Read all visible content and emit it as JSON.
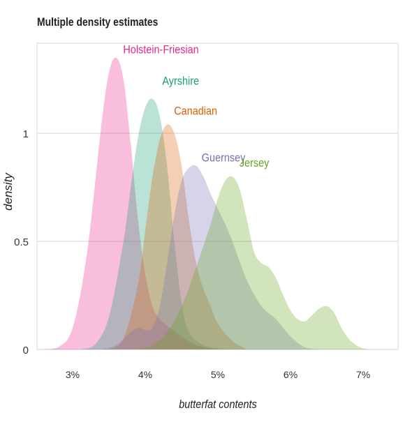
{
  "chart_data": {
    "type": "area",
    "title": "Multiple density estimates",
    "xlabel": "butterfat contents",
    "ylabel": "density",
    "xlim": [
      2.51,
      7.48
    ],
    "ylim": [
      0,
      1.42
    ],
    "x_ticks": [
      3,
      4,
      5,
      6,
      7
    ],
    "x_tick_labels": [
      "3%",
      "4%",
      "5%",
      "6%",
      "7%"
    ],
    "y_ticks": [
      0,
      0.5,
      1
    ],
    "y_tick_labels": [
      "0",
      "0.5",
      "1"
    ],
    "grid": "horizontal",
    "legend": "direct labels",
    "series": [
      {
        "name": "Holstein-Friesian",
        "color": "#E7298A",
        "x": [
          2.6,
          2.8,
          3.0,
          3.2,
          3.4,
          3.5,
          3.6,
          3.7,
          3.8,
          3.9,
          4.0,
          4.1,
          4.2,
          4.3,
          4.5,
          4.7,
          4.9,
          5.1
        ],
        "y": [
          0,
          0.01,
          0.1,
          0.45,
          1.05,
          1.28,
          1.35,
          1.25,
          0.95,
          0.6,
          0.35,
          0.2,
          0.14,
          0.11,
          0.06,
          0.02,
          0.005,
          0
        ]
      },
      {
        "name": "Ayrshire",
        "color": "#1B9E77",
        "x": [
          3.1,
          3.3,
          3.5,
          3.7,
          3.8,
          3.9,
          4.0,
          4.1,
          4.2,
          4.3,
          4.4,
          4.5,
          4.6,
          4.8,
          5.0,
          5.2
        ],
        "y": [
          0,
          0.02,
          0.15,
          0.5,
          0.75,
          0.98,
          1.12,
          1.16,
          1.08,
          0.85,
          0.5,
          0.22,
          0.08,
          0.02,
          0.005,
          0
        ]
      },
      {
        "name": "Canadian",
        "color": "#D95F02",
        "x": [
          3.5,
          3.7,
          3.9,
          4.0,
          4.1,
          4.2,
          4.3,
          4.4,
          4.5,
          4.6,
          4.7,
          4.8,
          4.9,
          5.0,
          5.2,
          5.4
        ],
        "y": [
          0,
          0.05,
          0.3,
          0.55,
          0.8,
          0.97,
          1.04,
          1.0,
          0.85,
          0.6,
          0.4,
          0.28,
          0.2,
          0.12,
          0.04,
          0
        ]
      },
      {
        "name": "Guernsey",
        "color": "#7570B3",
        "x": [
          3.4,
          3.6,
          3.8,
          3.9,
          4.0,
          4.1,
          4.2,
          4.3,
          4.4,
          4.5,
          4.6,
          4.7,
          4.8,
          4.9,
          5.0,
          5.1,
          5.2,
          5.4,
          5.6,
          5.8,
          6.0,
          6.2,
          6.4
        ],
        "y": [
          0,
          0.02,
          0.08,
          0.1,
          0.09,
          0.1,
          0.2,
          0.4,
          0.62,
          0.78,
          0.84,
          0.85,
          0.8,
          0.72,
          0.65,
          0.58,
          0.5,
          0.32,
          0.2,
          0.14,
          0.06,
          0.01,
          0
        ]
      },
      {
        "name": "Jersey",
        "color": "#66A61E",
        "x": [
          3.9,
          4.1,
          4.3,
          4.5,
          4.7,
          4.9,
          5.0,
          5.1,
          5.2,
          5.3,
          5.4,
          5.5,
          5.6,
          5.7,
          5.8,
          5.9,
          6.0,
          6.1,
          6.2,
          6.3,
          6.4,
          6.5,
          6.6,
          6.7,
          6.8,
          6.9,
          7.0,
          7.1
        ],
        "y": [
          0,
          0.02,
          0.08,
          0.2,
          0.38,
          0.58,
          0.7,
          0.78,
          0.8,
          0.74,
          0.6,
          0.45,
          0.4,
          0.38,
          0.33,
          0.25,
          0.18,
          0.14,
          0.13,
          0.16,
          0.19,
          0.2,
          0.17,
          0.1,
          0.05,
          0.02,
          0.005,
          0
        ]
      }
    ]
  }
}
